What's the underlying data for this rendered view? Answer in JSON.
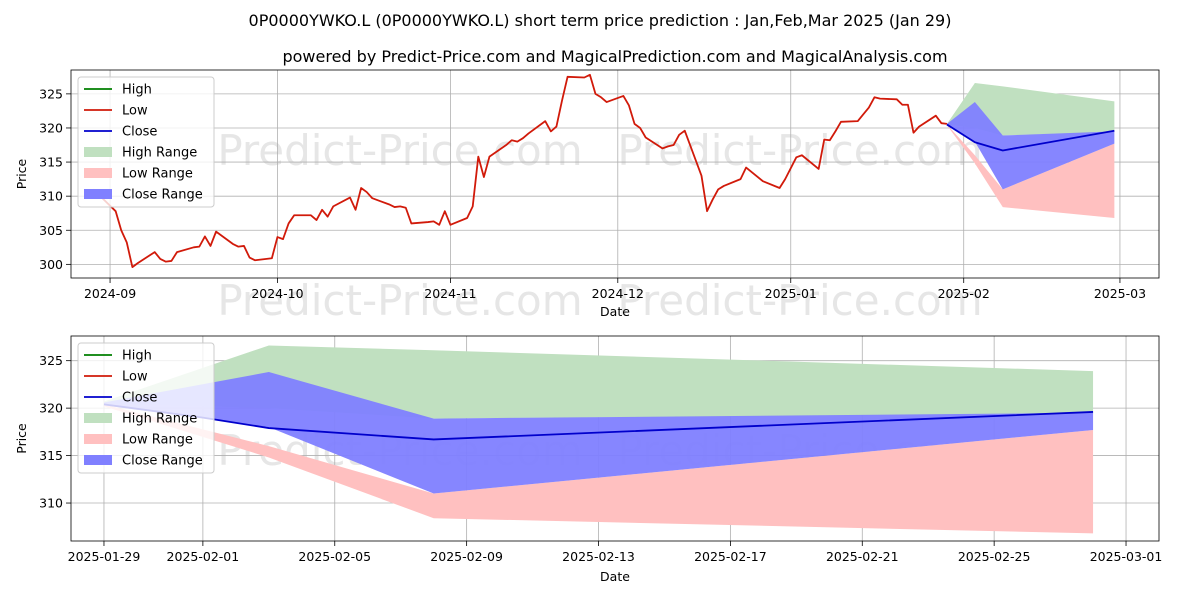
{
  "title": "0P0000YWKO.L (0P0000YWKO.L) short term price prediction : Jan,Feb,Mar 2025 (Jan 29)",
  "subtitle": "powered by Predict-Price.com and MagicalPrediction.com and MagicalAnalysis.com",
  "watermark": "Predict-Price.com",
  "colors": {
    "high": "#007f00",
    "low": "#d11a0a",
    "close": "#0000cc",
    "high_range": "#c0e0c0",
    "low_range": "#ffc0c0",
    "close_range": "#8080ff"
  },
  "chart_data": [
    {
      "type": "line",
      "xlabel": "Date",
      "ylabel": "Price",
      "x_ticks": [
        "2024-09",
        "2024-10",
        "2024-11",
        "2024-12",
        "2025-01",
        "2025-02",
        "2025-03"
      ],
      "y_ticks": [
        300,
        305,
        310,
        315,
        320,
        325
      ],
      "xlim": [
        "2024-08-25",
        "2025-03-08"
      ],
      "ylim": [
        298,
        328.5
      ],
      "grid": true,
      "legend": "upper-left",
      "legend_entries": [
        "High",
        "Low",
        "Close",
        "High Range",
        "Low Range",
        "Close Range"
      ],
      "series": [
        {
          "name": "Low",
          "x": [
            "2024-08-29",
            "2024-09-02",
            "2024-09-03",
            "2024-09-04",
            "2024-09-05",
            "2024-09-06",
            "2024-09-09",
            "2024-09-10",
            "2024-09-11",
            "2024-09-12",
            "2024-09-13",
            "2024-09-16",
            "2024-09-17",
            "2024-09-18",
            "2024-09-19",
            "2024-09-20",
            "2024-09-23",
            "2024-09-24",
            "2024-09-25",
            "2024-09-26",
            "2024-09-27",
            "2024-09-30",
            "2024-10-01",
            "2024-10-02",
            "2024-10-03",
            "2024-10-04",
            "2024-10-07",
            "2024-10-08",
            "2024-10-09",
            "2024-10-10",
            "2024-10-11",
            "2024-10-14",
            "2024-10-15",
            "2024-10-16",
            "2024-10-17",
            "2024-10-18",
            "2024-10-21",
            "2024-10-22",
            "2024-10-23",
            "2024-10-24",
            "2024-10-25",
            "2024-10-28",
            "2024-10-29",
            "2024-10-30",
            "2024-10-31",
            "2024-11-01",
            "2024-11-04",
            "2024-11-05",
            "2024-11-06",
            "2024-11-07",
            "2024-11-08",
            "2024-11-11",
            "2024-11-12",
            "2024-11-13",
            "2024-11-14",
            "2024-11-15",
            "2024-11-18",
            "2024-11-19",
            "2024-11-20",
            "2024-11-21",
            "2024-11-22",
            "2024-11-25",
            "2024-11-26",
            "2024-11-27",
            "2024-11-28",
            "2024-11-29",
            "2024-12-02",
            "2024-12-03",
            "2024-12-04",
            "2024-12-05",
            "2024-12-06",
            "2024-12-09",
            "2024-12-10",
            "2024-12-11",
            "2024-12-12",
            "2024-12-13",
            "2024-12-16",
            "2024-12-17",
            "2024-12-18",
            "2024-12-19",
            "2024-12-20",
            "2024-12-23",
            "2024-12-24",
            "2024-12-27",
            "2024-12-30",
            "2024-12-31",
            "2025-01-02",
            "2025-01-03",
            "2025-01-06",
            "2025-01-07",
            "2025-01-08",
            "2025-01-09",
            "2025-01-10",
            "2025-01-13",
            "2025-01-14",
            "2025-01-15",
            "2025-01-16",
            "2025-01-17",
            "2025-01-20",
            "2025-01-21",
            "2025-01-22",
            "2025-01-23",
            "2025-01-24",
            "2025-01-27",
            "2025-01-28",
            "2025-01-29"
          ],
          "y": [
            311.0,
            307.8,
            305.0,
            303.2,
            299.6,
            300.2,
            301.8,
            300.8,
            300.4,
            300.5,
            301.8,
            302.5,
            302.6,
            304.1,
            302.7,
            304.8,
            303.0,
            302.6,
            302.7,
            301.0,
            300.6,
            300.9,
            304.0,
            303.7,
            306.0,
            307.2,
            307.2,
            306.5,
            308.0,
            307.0,
            308.5,
            309.8,
            308.0,
            311.2,
            310.6,
            309.7,
            308.8,
            308.4,
            308.5,
            308.3,
            306.0,
            306.2,
            306.3,
            305.8,
            307.8,
            305.8,
            306.8,
            308.5,
            315.8,
            312.8,
            315.8,
            317.5,
            318.2,
            318.0,
            318.5,
            319.2,
            321.0,
            319.5,
            320.2,
            324.0,
            327.5,
            327.4,
            327.8,
            325.0,
            324.5,
            323.8,
            324.7,
            323.3,
            320.6,
            320.0,
            318.6,
            317.0,
            317.3,
            317.5,
            319.0,
            319.6,
            313.0,
            307.8,
            309.5,
            311.0,
            311.5,
            312.5,
            314.2,
            312.2,
            311.2,
            312.5,
            315.7,
            316.0,
            314.0,
            318.3,
            318.2,
            319.5,
            320.9,
            321.0,
            322.0,
            323.0,
            324.5,
            324.3,
            324.2,
            323.4,
            323.4,
            319.3,
            320.2,
            321.8,
            320.7,
            320.6
          ]
        },
        {
          "name": "Close",
          "x": [
            "2025-01-29",
            "2025-02-03",
            "2025-02-08",
            "2025-02-28"
          ],
          "y": [
            320.5,
            317.9,
            316.7,
            319.6
          ]
        }
      ],
      "ranges": [
        {
          "name": "High Range",
          "x": [
            "2025-01-29",
            "2025-02-03",
            "2025-02-08",
            "2025-02-28"
          ],
          "upper": [
            320.6,
            326.6,
            326.1,
            323.9
          ],
          "lower": [
            320.5,
            320.0,
            318.9,
            319.4
          ]
        },
        {
          "name": "Low Range",
          "x": [
            "2025-01-29",
            "2025-02-03",
            "2025-02-08",
            "2025-02-28"
          ],
          "upper": [
            320.5,
            316.0,
            311.0,
            317.7
          ],
          "lower": [
            320.4,
            314.8,
            308.4,
            306.8
          ]
        },
        {
          "name": "Close Range",
          "x": [
            "2025-01-29",
            "2025-02-03",
            "2025-02-08",
            "2025-02-28"
          ],
          "upper": [
            320.6,
            323.8,
            318.9,
            319.5
          ],
          "lower": [
            320.4,
            318.0,
            311.0,
            317.7
          ]
        }
      ]
    },
    {
      "type": "line",
      "xlabel": "Date",
      "ylabel": "Price",
      "x_ticks": [
        "2025-01-29",
        "2025-02-01",
        "2025-02-05",
        "2025-02-09",
        "2025-02-13",
        "2025-02-17",
        "2025-02-21",
        "2025-02-25",
        "2025-03-01"
      ],
      "y_ticks": [
        310,
        315,
        320,
        325
      ],
      "xlim": [
        "2025-01-28",
        "2025-03-02"
      ],
      "ylim": [
        306,
        327.6
      ],
      "grid": true,
      "legend": "upper-left",
      "legend_entries": [
        "High",
        "Low",
        "Close",
        "High Range",
        "Low Range",
        "Close Range"
      ],
      "series": [
        {
          "name": "Close",
          "x": [
            "2025-01-29",
            "2025-02-01",
            "2025-02-03",
            "2025-02-08",
            "2025-02-28"
          ],
          "y": [
            320.4,
            319.0,
            317.9,
            316.7,
            319.6
          ]
        }
      ],
      "ranges": [
        {
          "name": "High Range",
          "x": [
            "2025-01-29",
            "2025-02-03",
            "2025-02-08",
            "2025-02-28"
          ],
          "upper": [
            320.7,
            326.6,
            326.1,
            323.9
          ],
          "lower": [
            320.5,
            320.0,
            318.9,
            319.4
          ]
        },
        {
          "name": "Low Range",
          "x": [
            "2025-01-29",
            "2025-02-03",
            "2025-02-08",
            "2025-02-28"
          ],
          "upper": [
            320.4,
            316.0,
            311.0,
            317.7
          ],
          "lower": [
            320.2,
            314.8,
            308.4,
            306.8
          ]
        },
        {
          "name": "Close Range",
          "x": [
            "2025-01-29",
            "2025-02-03",
            "2025-02-08",
            "2025-02-28"
          ],
          "upper": [
            320.6,
            323.8,
            318.9,
            319.5
          ],
          "lower": [
            320.3,
            318.0,
            311.0,
            317.7
          ]
        }
      ]
    }
  ]
}
